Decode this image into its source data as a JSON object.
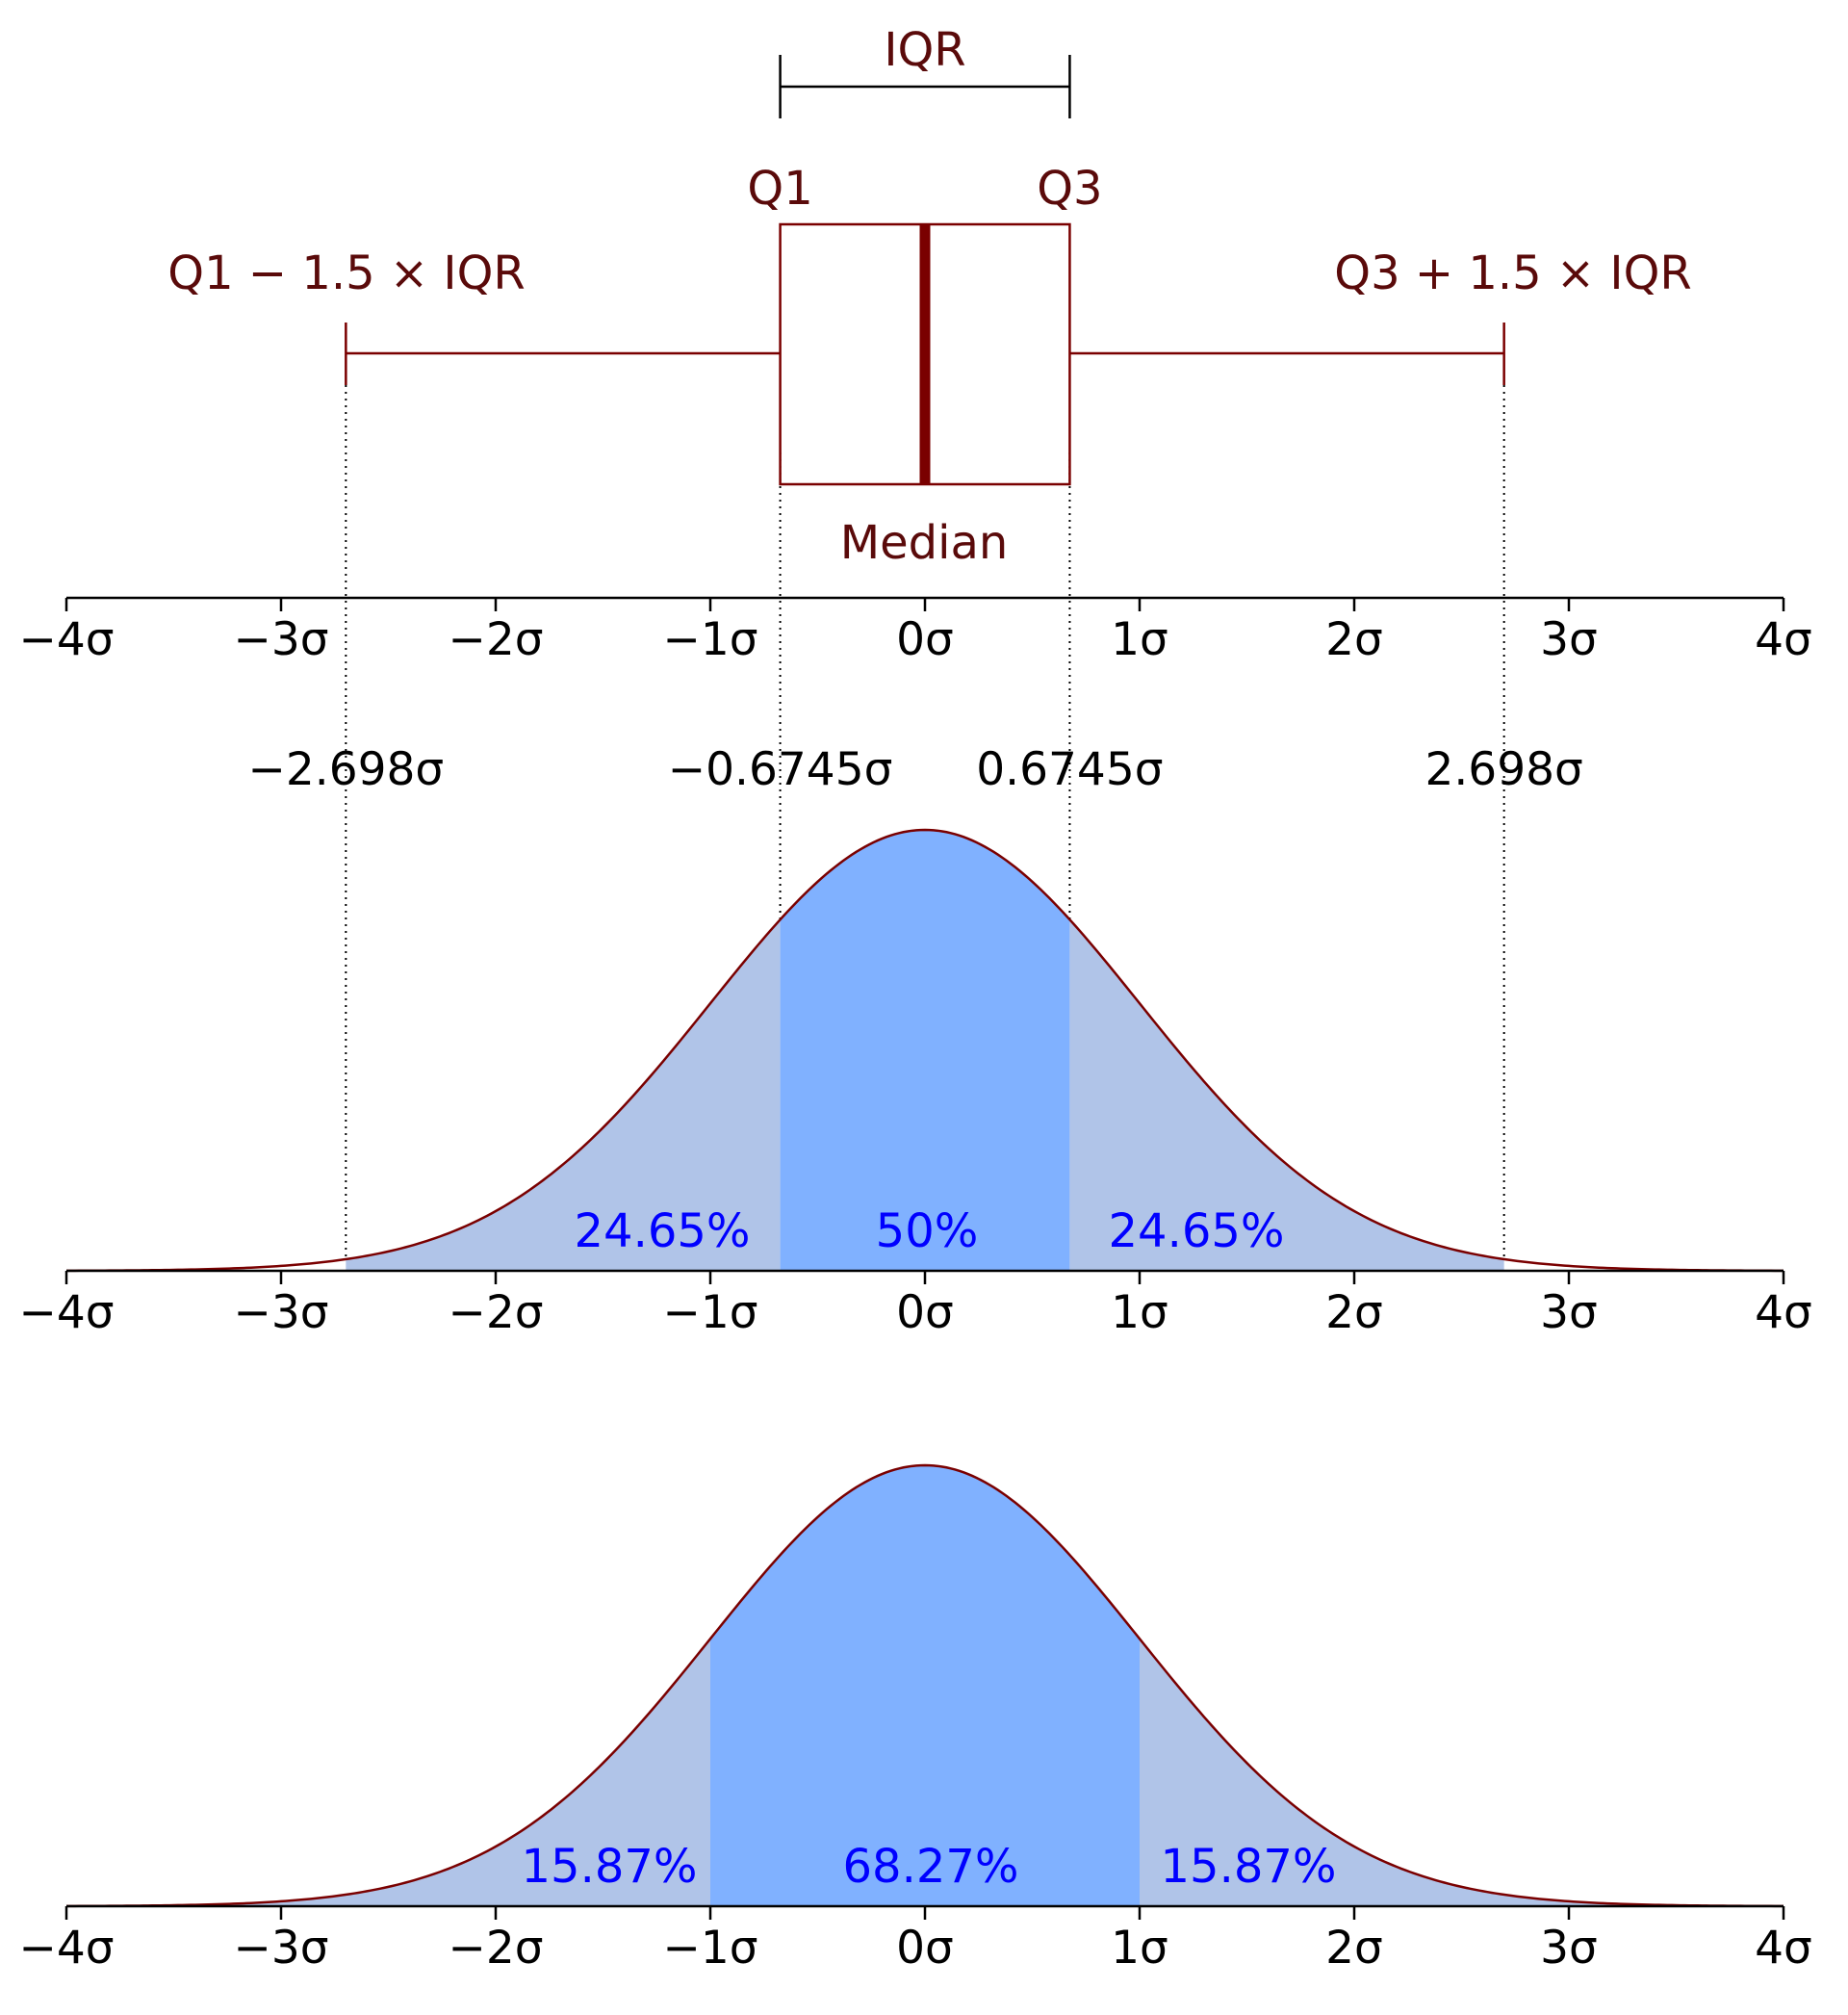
{
  "colors": {
    "curve": "#7a0000",
    "box": "#7a0000",
    "label_dark": "#5a0a0a",
    "fill_light": "#b0c4e8",
    "fill_strong": "#80b1ff",
    "percent_text": "#0000ff",
    "axis": "#000000"
  },
  "chart_data": [
    {
      "type": "boxplot",
      "xlim": [
        -4,
        4
      ],
      "ticks": [
        -4,
        -3,
        -2,
        -1,
        0,
        1,
        2,
        3,
        4
      ],
      "tick_labels": [
        "−4σ",
        "−3σ",
        "−2σ",
        "−1σ",
        "0σ",
        "1σ",
        "2σ",
        "3σ",
        "4σ"
      ],
      "box": {
        "q1": -0.6745,
        "median": 0,
        "q3": 0.6745,
        "whisker_low": -2.698,
        "whisker_high": 2.698
      },
      "annotations": {
        "iqr": "IQR",
        "q1": "Q1",
        "q3": "Q3",
        "lower_fence": "Q1 − 1.5 × IQR",
        "upper_fence": "Q3 + 1.5 × IQR",
        "median": "Median"
      },
      "quantile_labels": [
        {
          "x": -2.698,
          "text": "−2.698σ"
        },
        {
          "x": -0.6745,
          "text": "−0.6745σ"
        },
        {
          "x": 0.6745,
          "text": "0.6745σ"
        },
        {
          "x": 2.698,
          "text": "2.698σ"
        }
      ]
    },
    {
      "type": "area",
      "distribution": "normal",
      "mean": 0,
      "sd": 1,
      "xlim": [
        -4,
        4
      ],
      "ticks": [
        -4,
        -3,
        -2,
        -1,
        0,
        1,
        2,
        3,
        4
      ],
      "tick_labels": [
        "−4σ",
        "−3σ",
        "−2σ",
        "−1σ",
        "0σ",
        "1σ",
        "2σ",
        "3σ",
        "4σ"
      ],
      "regions": [
        {
          "from": -2.698,
          "to": -0.6745,
          "shade": "light",
          "label": "24.65%"
        },
        {
          "from": -0.6745,
          "to": 0.6745,
          "shade": "strong",
          "label": "50%"
        },
        {
          "from": 0.6745,
          "to": 2.698,
          "shade": "light",
          "label": "24.65%"
        }
      ]
    },
    {
      "type": "area",
      "distribution": "normal",
      "mean": 0,
      "sd": 1,
      "xlim": [
        -4,
        4
      ],
      "ticks": [
        -4,
        -3,
        -2,
        -1,
        0,
        1,
        2,
        3,
        4
      ],
      "tick_labels": [
        "−4σ",
        "−3σ",
        "−2σ",
        "−1σ",
        "0σ",
        "1σ",
        "2σ",
        "3σ",
        "4σ"
      ],
      "regions": [
        {
          "from": -4,
          "to": -1,
          "shade": "light",
          "label": "15.87%"
        },
        {
          "from": -1,
          "to": 1,
          "shade": "strong",
          "label": "68.27%"
        },
        {
          "from": 1,
          "to": 4,
          "shade": "light",
          "label": "15.87%"
        }
      ]
    }
  ]
}
